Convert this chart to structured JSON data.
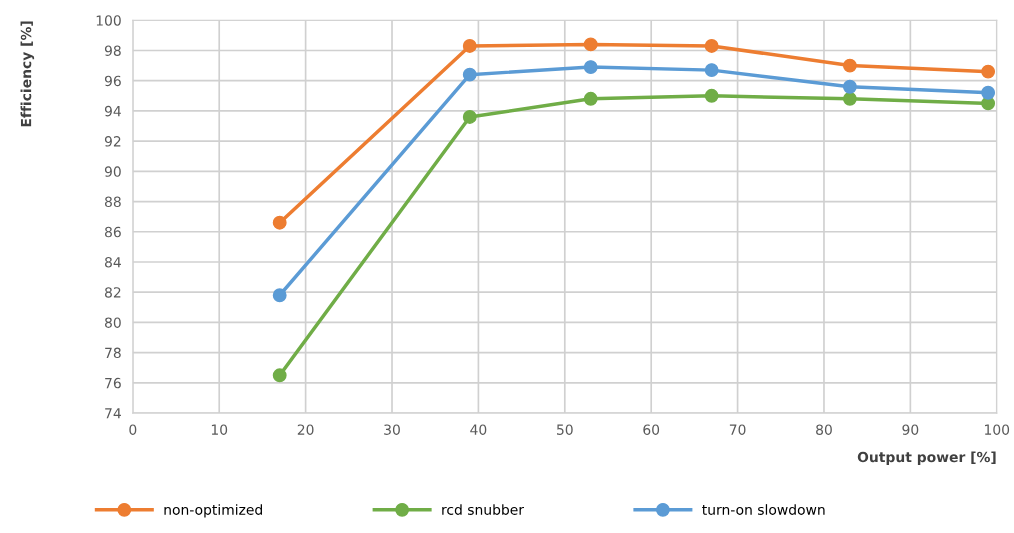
{
  "chart_data": {
    "type": "line",
    "xlabel": "Output power [%]",
    "ylabel": "Efficiency [%]",
    "xlim": [
      0,
      100
    ],
    "xticks": [
      0,
      10,
      20,
      30,
      40,
      50,
      60,
      70,
      80,
      90,
      100
    ],
    "ylim": [
      74,
      100
    ],
    "yticks": [
      74,
      76,
      78,
      80,
      82,
      84,
      86,
      88,
      90,
      92,
      94,
      96,
      98,
      100
    ],
    "grid": true,
    "legend": "bottom",
    "marker": "circle",
    "line_style": "solid",
    "x": [
      17,
      39,
      53,
      67,
      83,
      99
    ],
    "series": [
      {
        "name": "non-optimized",
        "color": "#ed7d31",
        "values": [
          86.6,
          98.3,
          98.4,
          98.3,
          97.0,
          96.6
        ]
      },
      {
        "name": "rcd snubber",
        "color": "#70ad47",
        "values": [
          76.5,
          93.6,
          94.8,
          95.0,
          94.8,
          94.5
        ]
      },
      {
        "name": "turn-on slowdown",
        "color": "#5b9bd5",
        "values": [
          81.8,
          96.4,
          96.9,
          96.7,
          95.6,
          95.2
        ]
      }
    ]
  }
}
